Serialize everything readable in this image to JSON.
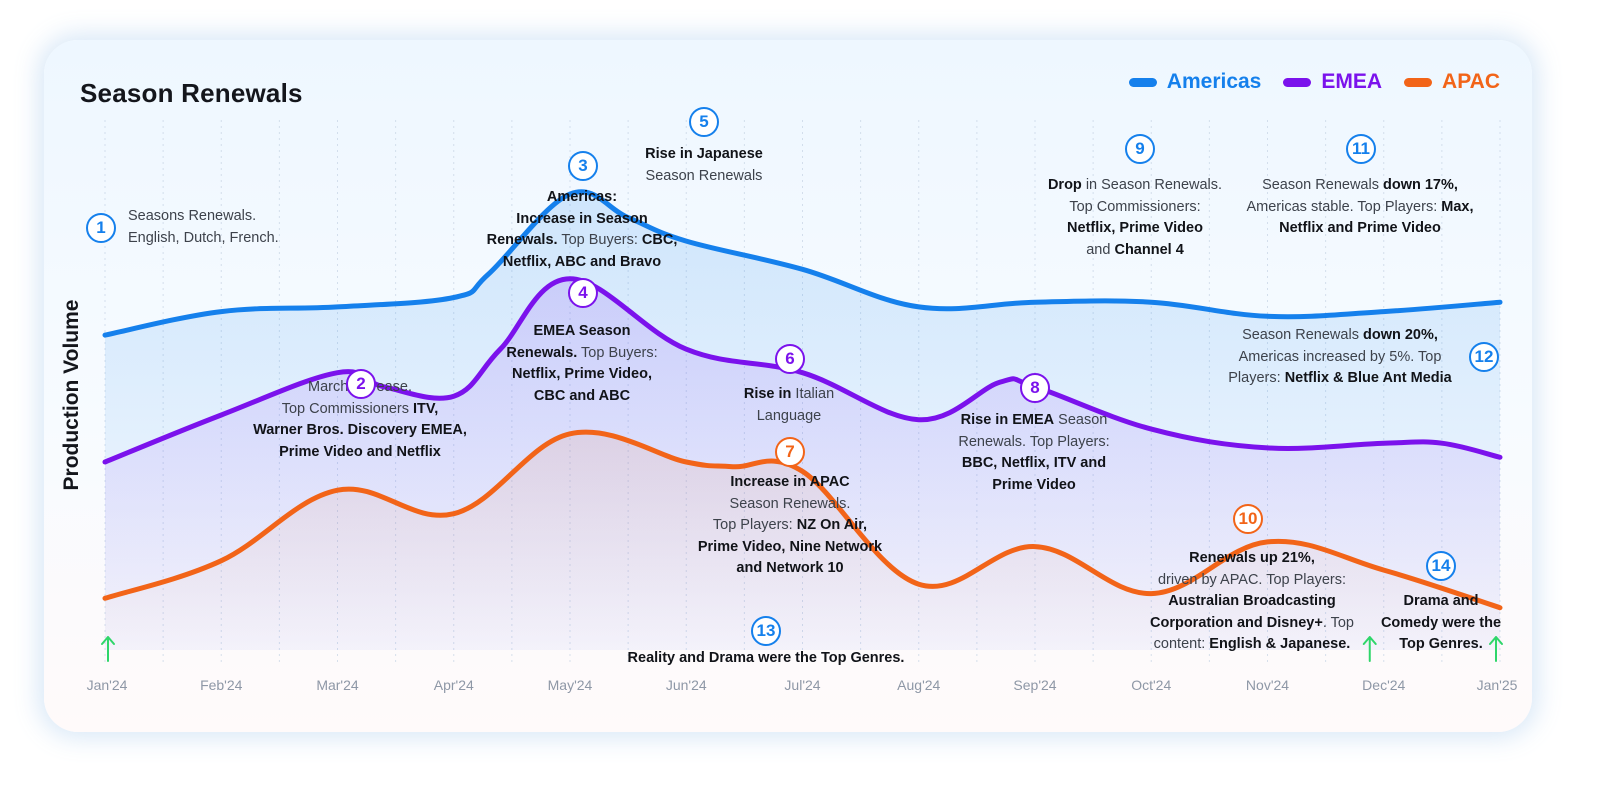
{
  "chart_data": {
    "type": "line",
    "title": "Season Renewals",
    "xlabel": "",
    "ylabel": "Production Volume",
    "categories": [
      "Jan'24",
      "Feb'24",
      "Mar'24",
      "Apr'24",
      "May'24",
      "Jun'24",
      "Jul'24",
      "Aug'24",
      "Sep'24",
      "Oct'24",
      "Nov'24",
      "Dec'24",
      "Jan'25"
    ],
    "ylim": [
      0,
      100
    ],
    "legend_position": "top-right",
    "series": [
      {
        "name": "Americas",
        "color": "#1580ec",
        "x": [
          0,
          1,
          2,
          3,
          3.3,
          4,
          4.5,
          5,
          6,
          7,
          8,
          9,
          10,
          11,
          12
        ],
        "values": [
          67,
          72,
          73,
          75,
          80,
          97,
          92,
          87,
          81,
          73,
          74,
          74,
          71,
          72,
          74
        ]
      },
      {
        "name": "EMEA",
        "color": "#7b12ec",
        "x": [
          0,
          1,
          2,
          2.4,
          3,
          3.4,
          4,
          5,
          6,
          7,
          7.7,
          8,
          9,
          10,
          11,
          11.5,
          12
        ],
        "values": [
          40,
          50,
          59,
          56,
          54,
          64,
          79,
          64,
          59,
          49,
          57,
          56,
          47,
          43,
          44,
          44,
          41
        ]
      },
      {
        "name": "APAC",
        "color": "#f26418",
        "x": [
          0,
          1,
          2,
          3,
          4,
          5,
          5.4,
          6,
          7,
          8,
          9,
          10,
          11,
          12
        ],
        "values": [
          11,
          19,
          34,
          29,
          46,
          40,
          39,
          38,
          14,
          22,
          12,
          23,
          17,
          9
        ]
      }
    ],
    "annotations": [
      {
        "n": "1",
        "series": "Americas",
        "lines": [
          [
            {
              "b": false,
              "t": "Seasons Renewals."
            }
          ],
          [
            {
              "b": false,
              "t": "English, Dutch, French."
            }
          ]
        ]
      },
      {
        "n": "2",
        "series": "EMEA",
        "lines": [
          [
            {
              "b": false,
              "t": "March Increase."
            }
          ],
          [
            {
              "b": false,
              "t": "Top Commissioners "
            },
            {
              "b": true,
              "t": "ITV,"
            }
          ],
          [
            {
              "b": true,
              "t": "Warner Bros. Discovery EMEA,"
            }
          ],
          [
            {
              "b": true,
              "t": "Prime Video and Netflix"
            }
          ]
        ]
      },
      {
        "n": "3",
        "series": "Americas",
        "lines": [
          [
            {
              "b": true,
              "t": "Americas:"
            }
          ],
          [
            {
              "b": true,
              "t": "Increase in Season"
            }
          ],
          [
            {
              "b": true,
              "t": "Renewals."
            },
            {
              "b": false,
              "t": " Top Buyers: "
            },
            {
              "b": true,
              "t": "CBC,"
            }
          ],
          [
            {
              "b": true,
              "t": "Netflix, ABC and Bravo"
            }
          ]
        ]
      },
      {
        "n": "4",
        "series": "EMEA",
        "lines": [
          [
            {
              "b": true,
              "t": "EMEA Season"
            }
          ],
          [
            {
              "b": true,
              "t": "Renewals."
            },
            {
              "b": false,
              "t": " Top Buyers:"
            }
          ],
          [
            {
              "b": true,
              "t": "Netflix, Prime Video,"
            }
          ],
          [
            {
              "b": true,
              "t": "CBC and ABC"
            }
          ]
        ]
      },
      {
        "n": "5",
        "series": "Americas",
        "lines": [
          [
            {
              "b": true,
              "t": "Rise in Japanese"
            }
          ],
          [
            {
              "b": false,
              "t": "Season Renewals"
            }
          ]
        ]
      },
      {
        "n": "6",
        "series": "EMEA",
        "lines": [
          [
            {
              "b": true,
              "t": "Rise in"
            },
            {
              "b": false,
              "t": " Italian"
            }
          ],
          [
            {
              "b": false,
              "t": "Language"
            }
          ]
        ]
      },
      {
        "n": "7",
        "series": "APAC",
        "lines": [
          [
            {
              "b": true,
              "t": "Increase in APAC"
            }
          ],
          [
            {
              "b": false,
              "t": "Season Renewals."
            }
          ],
          [
            {
              "b": false,
              "t": "Top Players: "
            },
            {
              "b": true,
              "t": "NZ On Air,"
            }
          ],
          [
            {
              "b": true,
              "t": "Prime Video, Nine Network"
            }
          ],
          [
            {
              "b": true,
              "t": "and Network 10"
            }
          ]
        ]
      },
      {
        "n": "8",
        "series": "EMEA",
        "lines": [
          [
            {
              "b": true,
              "t": "Rise in EMEA"
            },
            {
              "b": false,
              "t": " Season"
            }
          ],
          [
            {
              "b": false,
              "t": "Renewals. Top Players:"
            }
          ],
          [
            {
              "b": true,
              "t": "BBC, Netflix, ITV and"
            }
          ],
          [
            {
              "b": true,
              "t": "Prime Video"
            }
          ]
        ]
      },
      {
        "n": "9",
        "series": "Americas",
        "lines": [
          [
            {
              "b": true,
              "t": "Drop"
            },
            {
              "b": false,
              "t": " in Season Renewals."
            }
          ],
          [
            {
              "b": false,
              "t": "Top Commissioners:"
            }
          ],
          [
            {
              "b": true,
              "t": "Netflix, Prime Video"
            }
          ],
          [
            {
              "b": false,
              "t": "and "
            },
            {
              "b": true,
              "t": "Channel 4"
            }
          ]
        ]
      },
      {
        "n": "10",
        "series": "APAC",
        "lines": [
          [
            {
              "b": true,
              "t": "Renewals up 21%,"
            }
          ],
          [
            {
              "b": false,
              "t": "driven by APAC. Top Players:"
            }
          ],
          [
            {
              "b": true,
              "t": "Australian Broadcasting"
            }
          ],
          [
            {
              "b": true,
              "t": "Corporation and Disney+"
            },
            {
              "b": false,
              "t": ". Top"
            }
          ],
          [
            {
              "b": false,
              "t": "content: "
            },
            {
              "b": true,
              "t": "English & Japanese."
            }
          ]
        ]
      },
      {
        "n": "11",
        "series": "Americas",
        "lines": [
          [
            {
              "b": false,
              "t": "Season Renewals "
            },
            {
              "b": true,
              "t": "down 17%,"
            }
          ],
          [
            {
              "b": false,
              "t": "Americas stable. Top Players: "
            },
            {
              "b": true,
              "t": "Max,"
            }
          ],
          [
            {
              "b": true,
              "t": "Netflix and Prime Video"
            }
          ]
        ]
      },
      {
        "n": "12",
        "series": "Americas",
        "lines": [
          [
            {
              "b": false,
              "t": "Season Renewals "
            },
            {
              "b": true,
              "t": "down 20%,"
            }
          ],
          [
            {
              "b": false,
              "t": "Americas increased by 5%. Top"
            }
          ],
          [
            {
              "b": false,
              "t": "Players:  "
            },
            {
              "b": true,
              "t": "Netflix & Blue Ant Media"
            }
          ]
        ]
      },
      {
        "n": "13",
        "series": "Americas",
        "lines": [
          [
            {
              "b": true,
              "t": "Reality and Drama were the Top Genres."
            }
          ]
        ]
      },
      {
        "n": "14",
        "series": "Americas",
        "lines": [
          [
            {
              "b": true,
              "t": "Drama and"
            }
          ],
          [
            {
              "b": true,
              "t": "Comedy were the"
            }
          ],
          [
            {
              "b": true,
              "t": "Top Genres."
            }
          ]
        ]
      }
    ]
  }
}
